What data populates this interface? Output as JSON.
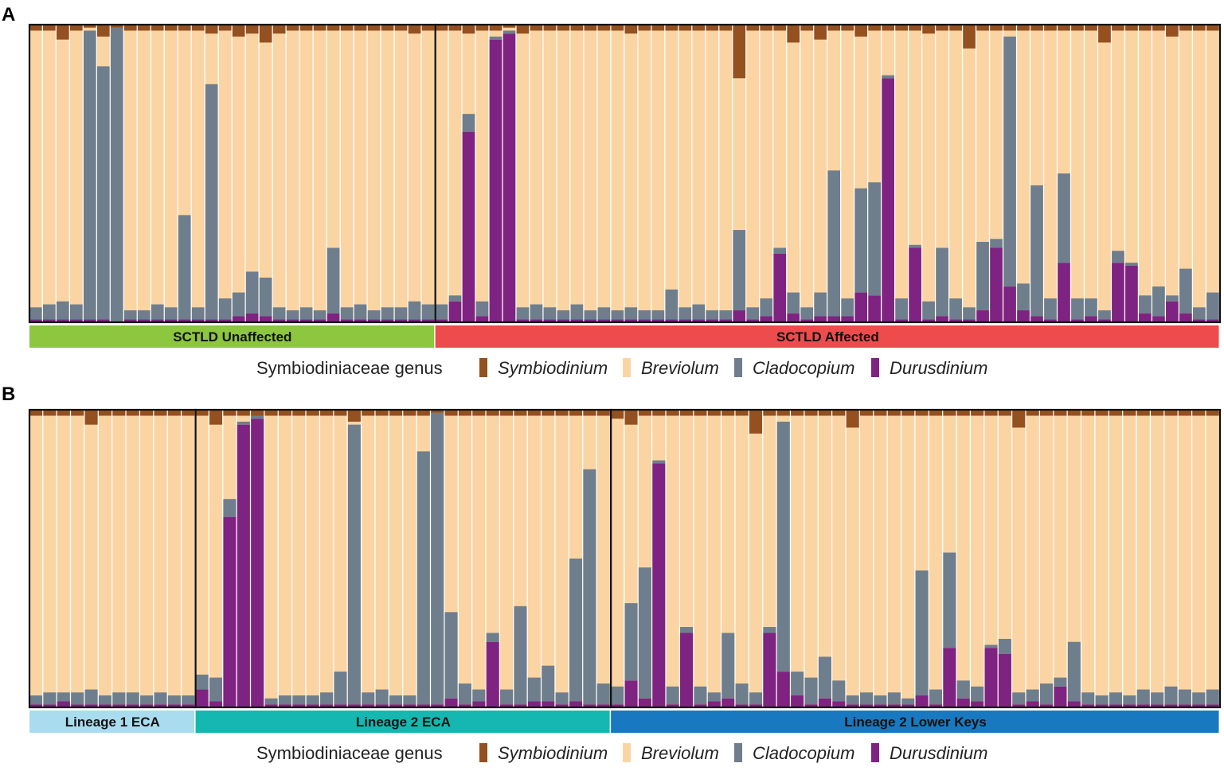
{
  "colors": {
    "Symbiodinium": "#94501f",
    "Breviolum": "#fbd4a3",
    "Cladocopium": "#6e7e8d",
    "Durusdinium": "#7e2381"
  },
  "legend": {
    "title": "Symbiodiniaceae genus",
    "items": [
      "Symbiodinium",
      "Breviolum",
      "Cladocopium",
      "Durusdinium"
    ]
  },
  "chart_data": [
    {
      "type": "stacked-bar",
      "panel": "A",
      "y_unit": "relative abundance (proportion)",
      "ylim": [
        0,
        1
      ],
      "series_order_bottom_to_top": [
        "Durusdinium",
        "Cladocopium",
        "Breviolum",
        "Symbiodinium"
      ],
      "groups": [
        {
          "label": "SCTLD Unaffected",
          "color": "#8dc63f",
          "samples": [
            {
              "S": 0.02,
              "C": 0.04,
              "D": 0.01
            },
            {
              "S": 0.02,
              "C": 0.05,
              "D": 0.01
            },
            {
              "S": 0.05,
              "C": 0.06,
              "D": 0.01
            },
            {
              "S": 0.02,
              "C": 0.05,
              "D": 0.01
            },
            {
              "S": 0.01,
              "C": 0.97,
              "D": 0.01
            },
            {
              "S": 0.04,
              "C": 0.85,
              "D": 0.01
            },
            {
              "S": 0.01,
              "C": 0.99,
              "D": 0.0
            },
            {
              "S": 0.02,
              "C": 0.03,
              "D": 0.01
            },
            {
              "S": 0.02,
              "C": 0.03,
              "D": 0.01
            },
            {
              "S": 0.02,
              "C": 0.05,
              "D": 0.01
            },
            {
              "S": 0.02,
              "C": 0.04,
              "D": 0.01
            },
            {
              "S": 0.02,
              "C": 0.35,
              "D": 0.01
            },
            {
              "S": 0.02,
              "C": 0.04,
              "D": 0.01
            },
            {
              "S": 0.03,
              "C": 0.79,
              "D": 0.01
            },
            {
              "S": 0.02,
              "C": 0.07,
              "D": 0.01
            },
            {
              "S": 0.04,
              "C": 0.08,
              "D": 0.02
            },
            {
              "S": 0.03,
              "C": 0.14,
              "D": 0.03
            },
            {
              "S": 0.06,
              "C": 0.13,
              "D": 0.02
            },
            {
              "S": 0.03,
              "C": 0.04,
              "D": 0.01
            },
            {
              "S": 0.02,
              "C": 0.03,
              "D": 0.01
            },
            {
              "S": 0.02,
              "C": 0.04,
              "D": 0.01
            },
            {
              "S": 0.02,
              "C": 0.03,
              "D": 0.01
            },
            {
              "S": 0.02,
              "C": 0.22,
              "D": 0.03
            },
            {
              "S": 0.02,
              "C": 0.04,
              "D": 0.01
            },
            {
              "S": 0.02,
              "C": 0.05,
              "D": 0.01
            },
            {
              "S": 0.02,
              "C": 0.03,
              "D": 0.01
            },
            {
              "S": 0.02,
              "C": 0.04,
              "D": 0.01
            },
            {
              "S": 0.02,
              "C": 0.04,
              "D": 0.01
            },
            {
              "S": 0.03,
              "C": 0.06,
              "D": 0.01
            },
            {
              "S": 0.02,
              "C": 0.05,
              "D": 0.01
            }
          ]
        },
        {
          "label": "SCTLD Affected",
          "color": "#ee4b4d",
          "samples": [
            {
              "S": 0.02,
              "C": 0.05,
              "D": 0.01
            },
            {
              "S": 0.02,
              "C": 0.02,
              "D": 0.07
            },
            {
              "S": 0.03,
              "C": 0.06,
              "D": 0.64
            },
            {
              "S": 0.02,
              "C": 0.05,
              "D": 0.02
            },
            {
              "S": 0.02,
              "C": 0.01,
              "D": 0.95
            },
            {
              "S": 0.01,
              "C": 0.01,
              "D": 0.97
            },
            {
              "S": 0.03,
              "C": 0.04,
              "D": 0.01
            },
            {
              "S": 0.02,
              "C": 0.05,
              "D": 0.01
            },
            {
              "S": 0.02,
              "C": 0.04,
              "D": 0.01
            },
            {
              "S": 0.02,
              "C": 0.03,
              "D": 0.01
            },
            {
              "S": 0.02,
              "C": 0.05,
              "D": 0.01
            },
            {
              "S": 0.02,
              "C": 0.03,
              "D": 0.01
            },
            {
              "S": 0.02,
              "C": 0.04,
              "D": 0.01
            },
            {
              "S": 0.02,
              "C": 0.03,
              "D": 0.01
            },
            {
              "S": 0.03,
              "C": 0.04,
              "D": 0.01
            },
            {
              "S": 0.02,
              "C": 0.03,
              "D": 0.01
            },
            {
              "S": 0.02,
              "C": 0.03,
              "D": 0.01
            },
            {
              "S": 0.02,
              "C": 0.1,
              "D": 0.01
            },
            {
              "S": 0.02,
              "C": 0.04,
              "D": 0.01
            },
            {
              "S": 0.02,
              "C": 0.05,
              "D": 0.01
            },
            {
              "S": 0.02,
              "C": 0.03,
              "D": 0.01
            },
            {
              "S": 0.02,
              "C": 0.03,
              "D": 0.01
            },
            {
              "S": 0.18,
              "C": 0.27,
              "D": 0.04
            },
            {
              "S": 0.02,
              "C": 0.04,
              "D": 0.01
            },
            {
              "S": 0.02,
              "C": 0.06,
              "D": 0.02
            },
            {
              "S": 0.02,
              "C": 0.02,
              "D": 0.23
            },
            {
              "S": 0.06,
              "C": 0.07,
              "D": 0.03
            },
            {
              "S": 0.02,
              "C": 0.04,
              "D": 0.01
            },
            {
              "S": 0.05,
              "C": 0.08,
              "D": 0.02
            },
            {
              "S": 0.02,
              "C": 0.49,
              "D": 0.02
            },
            {
              "S": 0.02,
              "C": 0.06,
              "D": 0.02
            },
            {
              "S": 0.04,
              "C": 0.35,
              "D": 0.1
            },
            {
              "S": 0.02,
              "C": 0.38,
              "D": 0.09
            },
            {
              "S": 0.02,
              "C": 0.01,
              "D": 0.82
            },
            {
              "S": 0.02,
              "C": 0.07,
              "D": 0.01
            },
            {
              "S": 0.02,
              "C": 0.01,
              "D": 0.25
            },
            {
              "S": 0.03,
              "C": 0.06,
              "D": 0.01
            },
            {
              "S": 0.02,
              "C": 0.23,
              "D": 0.02
            },
            {
              "S": 0.02,
              "C": 0.07,
              "D": 0.01
            },
            {
              "S": 0.08,
              "C": 0.04,
              "D": 0.01
            },
            {
              "S": 0.02,
              "C": 0.23,
              "D": 0.04
            },
            {
              "S": 0.02,
              "C": 0.03,
              "D": 0.25
            },
            {
              "S": 0.02,
              "C": 0.84,
              "D": 0.12
            },
            {
              "S": 0.02,
              "C": 0.09,
              "D": 0.04
            },
            {
              "S": 0.02,
              "C": 0.44,
              "D": 0.02
            },
            {
              "S": 0.02,
              "C": 0.07,
              "D": 0.01
            },
            {
              "S": 0.02,
              "C": 0.3,
              "D": 0.2
            },
            {
              "S": 0.02,
              "C": 0.07,
              "D": 0.01
            },
            {
              "S": 0.02,
              "C": 0.06,
              "D": 0.02
            },
            {
              "S": 0.06,
              "C": 0.03,
              "D": 0.01
            },
            {
              "S": 0.02,
              "C": 0.04,
              "D": 0.2
            },
            {
              "S": 0.02,
              "C": 0.01,
              "D": 0.19
            },
            {
              "S": 0.02,
              "C": 0.06,
              "D": 0.03
            },
            {
              "S": 0.02,
              "C": 0.1,
              "D": 0.02
            },
            {
              "S": 0.04,
              "C": 0.02,
              "D": 0.07
            },
            {
              "S": 0.02,
              "C": 0.15,
              "D": 0.03
            },
            {
              "S": 0.02,
              "C": 0.04,
              "D": 0.01
            },
            {
              "S": 0.02,
              "C": 0.09,
              "D": 0.01
            }
          ]
        }
      ]
    },
    {
      "type": "stacked-bar",
      "panel": "B",
      "y_unit": "relative abundance (proportion)",
      "ylim": [
        0,
        1
      ],
      "series_order_bottom_to_top": [
        "Durusdinium",
        "Cladocopium",
        "Breviolum",
        "Symbiodinium"
      ],
      "groups": [
        {
          "label": "Lineage 1 ECA",
          "color": "#aadcf0",
          "samples": [
            {
              "S": 0.02,
              "C": 0.03,
              "D": 0.01
            },
            {
              "S": 0.02,
              "C": 0.04,
              "D": 0.01
            },
            {
              "S": 0.02,
              "C": 0.03,
              "D": 0.02
            },
            {
              "S": 0.02,
              "C": 0.04,
              "D": 0.01
            },
            {
              "S": 0.05,
              "C": 0.05,
              "D": 0.01
            },
            {
              "S": 0.02,
              "C": 0.03,
              "D": 0.01
            },
            {
              "S": 0.02,
              "C": 0.04,
              "D": 0.01
            },
            {
              "S": 0.02,
              "C": 0.04,
              "D": 0.01
            },
            {
              "S": 0.02,
              "C": 0.03,
              "D": 0.01
            },
            {
              "S": 0.02,
              "C": 0.04,
              "D": 0.01
            },
            {
              "S": 0.02,
              "C": 0.03,
              "D": 0.01
            },
            {
              "S": 0.02,
              "C": 0.03,
              "D": 0.01
            }
          ]
        },
        {
          "label": "Lineage 2 ECA",
          "color": "#14b8b0",
          "samples": [
            {
              "S": 0.02,
              "C": 0.05,
              "D": 0.06
            },
            {
              "S": 0.05,
              "C": 0.08,
              "D": 0.02
            },
            {
              "S": 0.02,
              "C": 0.06,
              "D": 0.64
            },
            {
              "S": 0.02,
              "C": 0.01,
              "D": 0.95
            },
            {
              "S": 0.02,
              "C": 0.01,
              "D": 0.97
            },
            {
              "S": 0.02,
              "C": 0.02,
              "D": 0.01
            },
            {
              "S": 0.02,
              "C": 0.03,
              "D": 0.01
            },
            {
              "S": 0.02,
              "C": 0.03,
              "D": 0.01
            },
            {
              "S": 0.02,
              "C": 0.03,
              "D": 0.01
            },
            {
              "S": 0.02,
              "C": 0.04,
              "D": 0.01
            },
            {
              "S": 0.02,
              "C": 0.11,
              "D": 0.01
            },
            {
              "S": 0.04,
              "C": 0.94,
              "D": 0.01
            },
            {
              "S": 0.02,
              "C": 0.04,
              "D": 0.01
            },
            {
              "S": 0.02,
              "C": 0.05,
              "D": 0.01
            },
            {
              "S": 0.02,
              "C": 0.03,
              "D": 0.01
            },
            {
              "S": 0.02,
              "C": 0.03,
              "D": 0.01
            },
            {
              "S": 0.02,
              "C": 0.85,
              "D": 0.01
            },
            {
              "S": 0.01,
              "C": 0.98,
              "D": 0.01
            },
            {
              "S": 0.02,
              "C": 0.29,
              "D": 0.03
            },
            {
              "S": 0.02,
              "C": 0.07,
              "D": 0.01
            },
            {
              "S": 0.02,
              "C": 0.04,
              "D": 0.02
            },
            {
              "S": 0.02,
              "C": 0.03,
              "D": 0.22
            },
            {
              "S": 0.02,
              "C": 0.05,
              "D": 0.01
            },
            {
              "S": 0.02,
              "C": 0.33,
              "D": 0.01
            },
            {
              "S": 0.02,
              "C": 0.08,
              "D": 0.02
            },
            {
              "S": 0.02,
              "C": 0.12,
              "D": 0.02
            },
            {
              "S": 0.02,
              "C": 0.04,
              "D": 0.01
            },
            {
              "S": 0.02,
              "C": 0.48,
              "D": 0.02
            },
            {
              "S": 0.02,
              "C": 0.79,
              "D": 0.01
            },
            {
              "S": 0.02,
              "C": 0.07,
              "D": 0.01
            }
          ]
        },
        {
          "label": "Lineage 2 Lower Keys",
          "color": "#1979c0",
          "samples": [
            {
              "S": 0.03,
              "C": 0.06,
              "D": 0.01
            },
            {
              "S": 0.05,
              "C": 0.26,
              "D": 0.09
            },
            {
              "S": 0.02,
              "C": 0.44,
              "D": 0.03
            },
            {
              "S": 0.02,
              "C": 0.01,
              "D": 0.82
            },
            {
              "S": 0.02,
              "C": 0.06,
              "D": 0.01
            },
            {
              "S": 0.02,
              "C": 0.02,
              "D": 0.25
            },
            {
              "S": 0.02,
              "C": 0.06,
              "D": 0.01
            },
            {
              "S": 0.02,
              "C": 0.03,
              "D": 0.02
            },
            {
              "S": 0.02,
              "C": 0.22,
              "D": 0.03
            },
            {
              "S": 0.02,
              "C": 0.07,
              "D": 0.01
            },
            {
              "S": 0.08,
              "C": 0.04,
              "D": 0.01
            },
            {
              "S": 0.02,
              "C": 0.02,
              "D": 0.25
            },
            {
              "S": 0.02,
              "C": 0.84,
              "D": 0.12
            },
            {
              "S": 0.02,
              "C": 0.08,
              "D": 0.04
            },
            {
              "S": 0.02,
              "C": 0.09,
              "D": 0.01
            },
            {
              "S": 0.02,
              "C": 0.14,
              "D": 0.03
            },
            {
              "S": 0.02,
              "C": 0.07,
              "D": 0.02
            },
            {
              "S": 0.06,
              "C": 0.03,
              "D": 0.01
            },
            {
              "S": 0.02,
              "C": 0.04,
              "D": 0.01
            },
            {
              "S": 0.02,
              "C": 0.03,
              "D": 0.01
            },
            {
              "S": 0.02,
              "C": 0.04,
              "D": 0.01
            },
            {
              "S": 0.02,
              "C": 0.02,
              "D": 0.01
            },
            {
              "S": 0.02,
              "C": 0.42,
              "D": 0.04
            },
            {
              "S": 0.02,
              "C": 0.05,
              "D": 0.01
            },
            {
              "S": 0.02,
              "C": 0.32,
              "D": 0.2
            },
            {
              "S": 0.02,
              "C": 0.06,
              "D": 0.03
            },
            {
              "S": 0.02,
              "C": 0.05,
              "D": 0.02
            },
            {
              "S": 0.02,
              "C": 0.01,
              "D": 0.2
            },
            {
              "S": 0.02,
              "C": 0.05,
              "D": 0.18
            },
            {
              "S": 0.06,
              "C": 0.04,
              "D": 0.01
            },
            {
              "S": 0.02,
              "C": 0.04,
              "D": 0.02
            },
            {
              "S": 0.02,
              "C": 0.07,
              "D": 0.01
            },
            {
              "S": 0.02,
              "C": 0.03,
              "D": 0.07
            },
            {
              "S": 0.02,
              "C": 0.2,
              "D": 0.02
            },
            {
              "S": 0.02,
              "C": 0.04,
              "D": 0.01
            },
            {
              "S": 0.02,
              "C": 0.03,
              "D": 0.01
            },
            {
              "S": 0.02,
              "C": 0.04,
              "D": 0.01
            },
            {
              "S": 0.02,
              "C": 0.03,
              "D": 0.01
            },
            {
              "S": 0.02,
              "C": 0.05,
              "D": 0.01
            },
            {
              "S": 0.02,
              "C": 0.04,
              "D": 0.01
            },
            {
              "S": 0.02,
              "C": 0.06,
              "D": 0.01
            },
            {
              "S": 0.02,
              "C": 0.05,
              "D": 0.01
            },
            {
              "S": 0.02,
              "C": 0.04,
              "D": 0.01
            },
            {
              "S": 0.02,
              "C": 0.05,
              "D": 0.01
            }
          ]
        }
      ]
    }
  ]
}
